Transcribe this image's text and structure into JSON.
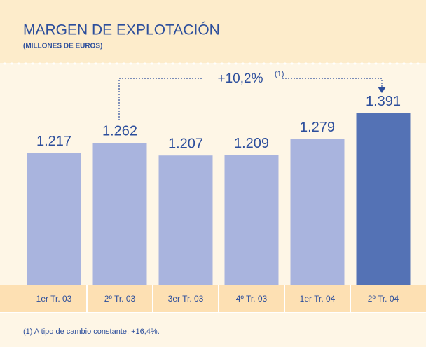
{
  "chart_data": {
    "type": "bar",
    "title": "MARGEN DE EXPLOTACIÓN",
    "subtitle": "(MILLONES DE EUROS)",
    "categories": [
      "1er Tr. 03",
      "2º Tr. 03",
      "3er Tr. 03",
      "4º Tr. 03",
      "1er Tr. 04",
      "2º Tr. 04"
    ],
    "values": [
      1217,
      1262,
      1207,
      1209,
      1279,
      1391
    ],
    "value_labels": [
      "1.217",
      "1.262",
      "1.207",
      "1.209",
      "1.279",
      "1.391"
    ],
    "colors": [
      "#a9b4de",
      "#a9b4de",
      "#a9b4de",
      "#a9b4de",
      "#a9b4de",
      "#5472b5"
    ],
    "ylim": [
      643,
      1580
    ],
    "annotation": "+10,2%",
    "annotation_note": "(1)",
    "footnote": "(1)  A tipo de cambio constante: +16,4%."
  }
}
